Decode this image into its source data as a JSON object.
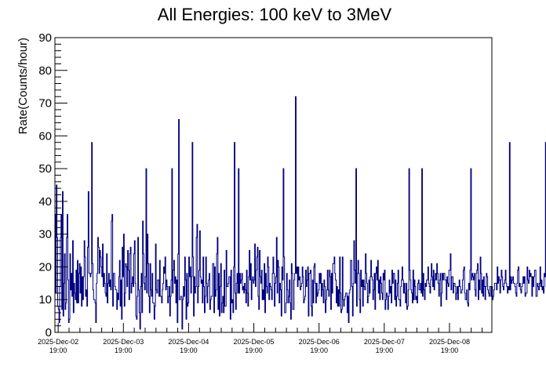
{
  "chart_data": {
    "type": "histogram",
    "title": "All Energies:  100 keV to 3MeV",
    "xlabel": "",
    "ylabel": "Rate(Counts/hour)",
    "ylim": [
      0,
      90
    ],
    "yticks": [
      0,
      10,
      20,
      30,
      40,
      50,
      60,
      70,
      80,
      90
    ],
    "x_tick_labels": [
      {
        "date": "2025-Dec-02",
        "time": "19:00"
      },
      {
        "date": "2025-Dec-03",
        "time": "19:00"
      },
      {
        "date": "2025-Dec-04",
        "time": "19:00"
      },
      {
        "date": "2025-Dec-05",
        "time": "19:00"
      },
      {
        "date": "2025-Dec-06",
        "time": "19:00"
      },
      {
        "date": "2025-Dec-07",
        "time": "19:00"
      },
      {
        "date": "2025-Dec-08",
        "time": "19:00"
      }
    ],
    "x_range_days": [
      -0.05,
      6.65
    ],
    "bins_per_day": 96,
    "series": [
      {
        "name": "Rate",
        "color": "#000080",
        "values": [
          36,
          12,
          45,
          29,
          8,
          7,
          3,
          14,
          29,
          36,
          7,
          43,
          5,
          15,
          24,
          7,
          9,
          29,
          36,
          16,
          3,
          4,
          24,
          13,
          18,
          11,
          28,
          6,
          15,
          12,
          10,
          19,
          9,
          22,
          9,
          18,
          21,
          12,
          20,
          8,
          17,
          10,
          17,
          28,
          23,
          11,
          13,
          8,
          26,
          43,
          18,
          18,
          17,
          18,
          58,
          21,
          13,
          10,
          10,
          9,
          3,
          15,
          18,
          29,
          26,
          18,
          25,
          23,
          20,
          17,
          27,
          14,
          18,
          15,
          12,
          11,
          24,
          9,
          15,
          18,
          14,
          16,
          13,
          34,
          36,
          8,
          18,
          18,
          14,
          13,
          13,
          7,
          12,
          10,
          17,
          22,
          8,
          16,
          4,
          26,
          17,
          30,
          8,
          12,
          21,
          20,
          14,
          25,
          19,
          10,
          24,
          26,
          12,
          15,
          17,
          14,
          24,
          28,
          15,
          5,
          4,
          11,
          29,
          13,
          6,
          1,
          14,
          18,
          6,
          34,
          24,
          15,
          13,
          17,
          50,
          12,
          30,
          21,
          11,
          6,
          21,
          13,
          11,
          18,
          9,
          9,
          4,
          8,
          27,
          13,
          12,
          16,
          16,
          11,
          22,
          11,
          11,
          9,
          13,
          15,
          20,
          18,
          23,
          13,
          16,
          14,
          9,
          11,
          14,
          5,
          11,
          16,
          50,
          12,
          19,
          22,
          15,
          17,
          9,
          16,
          3,
          24,
          65,
          10,
          10,
          11,
          11,
          1,
          10,
          14,
          11,
          23,
          16,
          4,
          18,
          8,
          9,
          23,
          17,
          20,
          12,
          17,
          58,
          23,
          5,
          17,
          12,
          14,
          29,
          33,
          9,
          14,
          19,
          31,
          17,
          15,
          16,
          9,
          23,
          14,
          6,
          11,
          23,
          15,
          9,
          14,
          16,
          18,
          7,
          10,
          11,
          11,
          21,
          21,
          6,
          20,
          11,
          13,
          24,
          29,
          7,
          18,
          5,
          14,
          21,
          6,
          9,
          11,
          6,
          19,
          8,
          8,
          25,
          14,
          14,
          15,
          17,
          17,
          4,
          19,
          9,
          10,
          6,
          20,
          58,
          12,
          7,
          15,
          18,
          12,
          50,
          12,
          18,
          15,
          16,
          18,
          13,
          14,
          12,
          15,
          13,
          9,
          19,
          12,
          8,
          17,
          25,
          16,
          21,
          10,
          16,
          17,
          15,
          16,
          27,
          14,
          19,
          23,
          26,
          11,
          7,
          25,
          17,
          15,
          19,
          10,
          13,
          10,
          21,
          6,
          18,
          14,
          12,
          23,
          20,
          10,
          15,
          14,
          13,
          10,
          18,
          23,
          18,
          8,
          15,
          17,
          29,
          12,
          22,
          20,
          9,
          15,
          13,
          5,
          20,
          16,
          50,
          23,
          6,
          6,
          9,
          18,
          13,
          9,
          11,
          16,
          9,
          4,
          21,
          18,
          7,
          7,
          16,
          18,
          72,
          18,
          20,
          14,
          20,
          16,
          17,
          13,
          14,
          15,
          20,
          17,
          9,
          10,
          11,
          19,
          14,
          16,
          20,
          5,
          18,
          18,
          19,
          8,
          5,
          16,
          9,
          20,
          21,
          15,
          9,
          15,
          11,
          12,
          13,
          18,
          15,
          18,
          11,
          15,
          13,
          9,
          16,
          14,
          6,
          10,
          13,
          19,
          13,
          11,
          19,
          17,
          7,
          18,
          12,
          21,
          21,
          23,
          18,
          16,
          9,
          14,
          8,
          13,
          8,
          23,
          12,
          6,
          7,
          23,
          10,
          8,
          10,
          11,
          12,
          12,
          6,
          11,
          3,
          12,
          13,
          22,
          22,
          14,
          5,
          15,
          28,
          19,
          15,
          50,
          8,
          18,
          22,
          18,
          10,
          6,
          19,
          14,
          16,
          8,
          16,
          14,
          13,
          24,
          18,
          15,
          9,
          11,
          16,
          12,
          17,
          22,
          17,
          16,
          10,
          13,
          18,
          7,
          18,
          20,
          16,
          22,
          12,
          16,
          10,
          17,
          15,
          12,
          10,
          18,
          16,
          19,
          7,
          10,
          12,
          11,
          7,
          11,
          16,
          12,
          14,
          9,
          19,
          15,
          18,
          18,
          10,
          16,
          8,
          11,
          15,
          19,
          10,
          10,
          8,
          14,
          16,
          20,
          16,
          12,
          15,
          12,
          9,
          15,
          7,
          8,
          13,
          50,
          19,
          16,
          13,
          12,
          9,
          19,
          10,
          16,
          14,
          10,
          11,
          9,
          15,
          16,
          13,
          13,
          15,
          12,
          50,
          11,
          18,
          13,
          10,
          15,
          14,
          16,
          16,
          20,
          15,
          14,
          12,
          16,
          21,
          17,
          14,
          19,
          13,
          16,
          18,
          16,
          21,
          18,
          15,
          11,
          16,
          18,
          8,
          12,
          18,
          16,
          18,
          18,
          16,
          16,
          10,
          17,
          15,
          14,
          19,
          19,
          24,
          13,
          17,
          17,
          12,
          15,
          15,
          14,
          10,
          12,
          14,
          10,
          14,
          16,
          14,
          12,
          12,
          13,
          16,
          19,
          20,
          12,
          10,
          10,
          13,
          9,
          8,
          15,
          13,
          19,
          50,
          16,
          18,
          17,
          16,
          18,
          13,
          11,
          18,
          19,
          21,
          10,
          16,
          13,
          23,
          18,
          12,
          16,
          11,
          17,
          14,
          10,
          14,
          18,
          17,
          13,
          12,
          11,
          14,
          14,
          11,
          14,
          10,
          11,
          13,
          15,
          15,
          15,
          13,
          20,
          15,
          17,
          16,
          12,
          16,
          19,
          17,
          14,
          13,
          15,
          16,
          19,
          15,
          14,
          12,
          14,
          13,
          58,
          13,
          17,
          15,
          16,
          17,
          15,
          15,
          14,
          12,
          11,
          15,
          19,
          20,
          14,
          15,
          13,
          12,
          14,
          15,
          17,
          15,
          17,
          11,
          12,
          12,
          20,
          16,
          15,
          19,
          17,
          18,
          17,
          11,
          17,
          14,
          17,
          19,
          19,
          11,
          11,
          15,
          14,
          13,
          15,
          20,
          14,
          16,
          13,
          14,
          12,
          18,
          17,
          58,
          14,
          14,
          16,
          16,
          17,
          18
        ]
      }
    ]
  }
}
